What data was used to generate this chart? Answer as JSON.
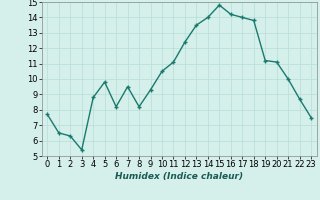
{
  "x": [
    0,
    1,
    2,
    3,
    4,
    5,
    6,
    7,
    8,
    9,
    10,
    11,
    12,
    13,
    14,
    15,
    16,
    17,
    18,
    19,
    20,
    21,
    22,
    23
  ],
  "y": [
    7.7,
    6.5,
    6.3,
    5.4,
    8.8,
    9.8,
    8.2,
    9.5,
    8.2,
    9.3,
    10.5,
    11.1,
    12.4,
    13.5,
    14.0,
    14.8,
    14.2,
    14.0,
    13.8,
    11.2,
    11.1,
    10.0,
    8.7,
    7.5
  ],
  "line_color": "#1a7a6e",
  "marker": "+",
  "marker_size": 3,
  "marker_lw": 1.0,
  "line_width": 1.0,
  "bg_color": "#d5efeb",
  "grid_color": "#b8ddd8",
  "xlabel": "Humidex (Indice chaleur)",
  "xlim": [
    -0.5,
    23.5
  ],
  "ylim": [
    5,
    15
  ],
  "yticks": [
    5,
    6,
    7,
    8,
    9,
    10,
    11,
    12,
    13,
    14,
    15
  ],
  "xticks": [
    0,
    1,
    2,
    3,
    4,
    5,
    6,
    7,
    8,
    9,
    10,
    11,
    12,
    13,
    14,
    15,
    16,
    17,
    18,
    19,
    20,
    21,
    22,
    23
  ],
  "tick_fontsize": 6,
  "xlabel_fontsize": 6.5,
  "xlabel_color": "#1a5a52"
}
